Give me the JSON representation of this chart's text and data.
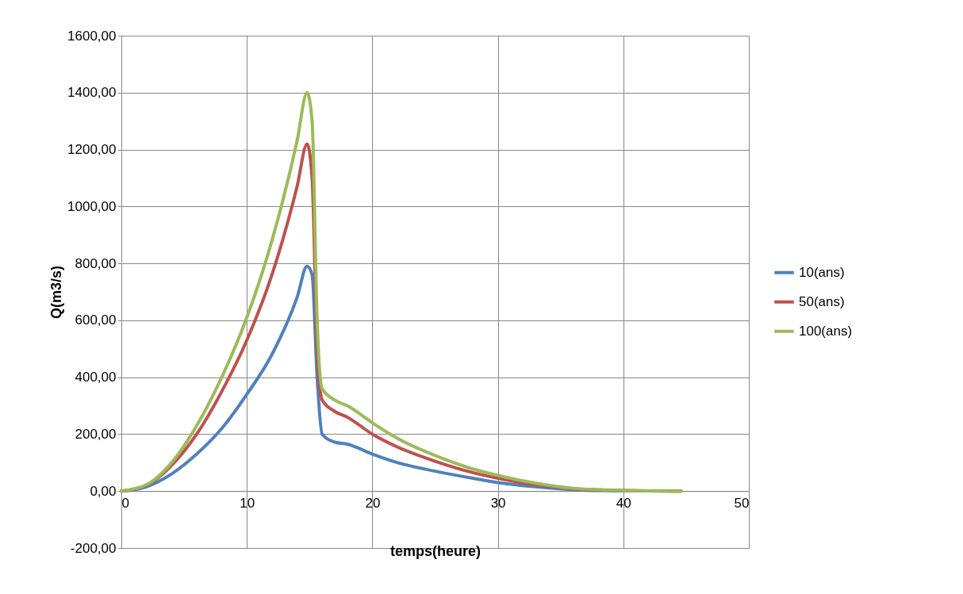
{
  "chart_data": {
    "type": "line",
    "xlabel": "temps(heure)",
    "ylabel": "Q(m3/s)",
    "xlim": [
      0,
      50
    ],
    "xticks": [
      0,
      10,
      20,
      30,
      40,
      50
    ],
    "ylim": [
      -200,
      1600
    ],
    "yticks": [
      {
        "value": -200,
        "label": "-200,00"
      },
      {
        "value": 0,
        "label": "0,00"
      },
      {
        "value": 200,
        "label": "200,00"
      },
      {
        "value": 400,
        "label": "400,00"
      },
      {
        "value": 600,
        "label": "600,00"
      },
      {
        "value": 800,
        "label": "800,00"
      },
      {
        "value": 1000,
        "label": "1000,00"
      },
      {
        "value": 1200,
        "label": "1200,00"
      },
      {
        "value": 1400,
        "label": "1400,00"
      },
      {
        "value": 1600,
        "label": "1600,00"
      }
    ],
    "grid": true,
    "legend": "right",
    "marker": "none",
    "line_style": "solid",
    "x": [
      0,
      2,
      4,
      6,
      8,
      10,
      12,
      14,
      14.8,
      15.2,
      15.6,
      16,
      17,
      18,
      20,
      22,
      25,
      28,
      30,
      33,
      36,
      40,
      44.6
    ],
    "series": [
      {
        "name": "10(ans)",
        "color": "#4f81bd",
        "values": [
          0,
          15,
          60,
          130,
          220,
          340,
          480,
          680,
          790,
          760,
          400,
          200,
          172,
          165,
          130,
          100,
          70,
          45,
          30,
          15,
          5,
          1,
          0
        ]
      },
      {
        "name": "50(ans)",
        "color": "#c0504d",
        "values": [
          0,
          20,
          90,
          200,
          350,
          530,
          760,
          1070,
          1220,
          1100,
          500,
          320,
          280,
          260,
          200,
          155,
          105,
          65,
          45,
          22,
          8,
          2,
          0
        ]
      },
      {
        "name": "100(ans)",
        "color": "#9bbb59",
        "values": [
          0,
          22,
          100,
          230,
          400,
          610,
          880,
          1230,
          1400,
          1300,
          600,
          360,
          320,
          300,
          240,
          185,
          125,
          78,
          55,
          28,
          10,
          2,
          0
        ]
      }
    ]
  }
}
